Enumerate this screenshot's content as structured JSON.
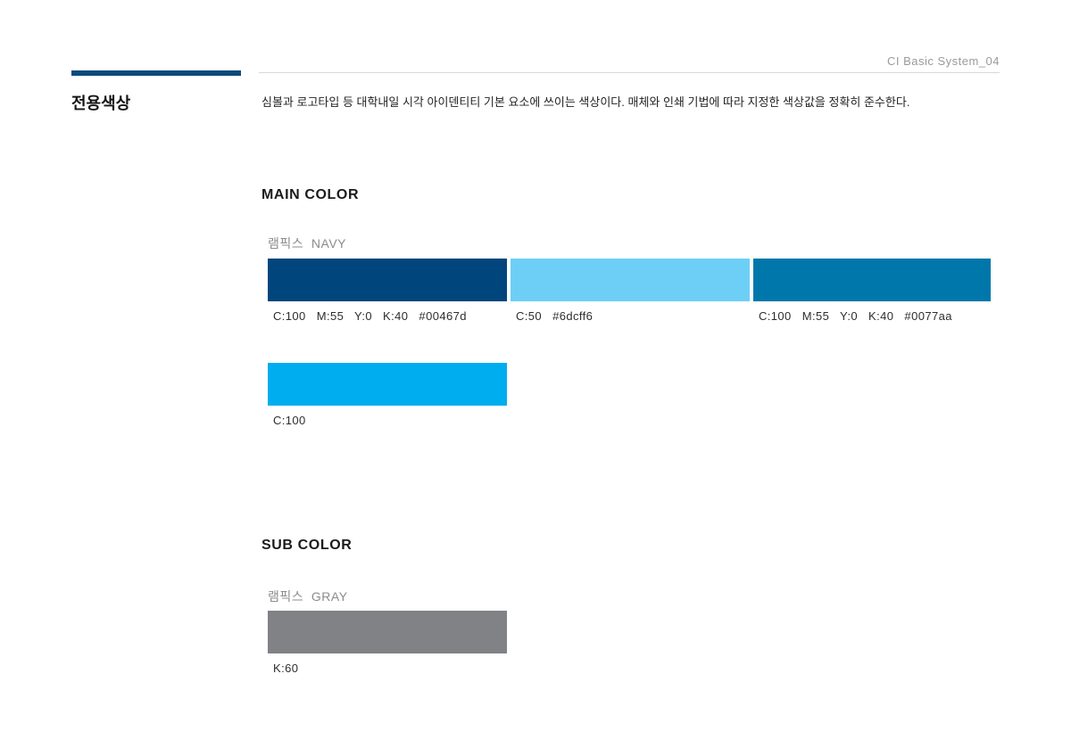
{
  "theme": {
    "accent_bar_color": "#0e4a7d",
    "rule_color": "#d8d8d8"
  },
  "header": {
    "doc_label": "CI Basic System_04"
  },
  "sidebar": {
    "section_title": "전용색상"
  },
  "intro": {
    "description": "심볼과 로고타입 등 대학내일 시각 아이덴티티 기본 요소에 쓰이는 색상이다. 매체와 인쇄 기법에 따라 지정한 색상값을 정확히 준수한다."
  },
  "main_color": {
    "heading": "MAIN COLOR",
    "group_label": "램픽스  NAVY",
    "row1": [
      {
        "hex": "#00467d",
        "values": "C:100   M:55   Y:0   K:40   #00467d"
      },
      {
        "hex": "#6dcff6",
        "values": "C:50   #6dcff6"
      },
      {
        "hex": "#0077aa",
        "values": "C:100   M:55   Y:0   K:40   #0077aa"
      }
    ],
    "row2": [
      {
        "hex": "#00aeef",
        "values": "C:100"
      }
    ]
  },
  "sub_color": {
    "heading": "SUB COLOR",
    "group_label": "램픽스  GRAY",
    "row1": [
      {
        "hex": "#808285",
        "values": "K:60"
      }
    ]
  }
}
